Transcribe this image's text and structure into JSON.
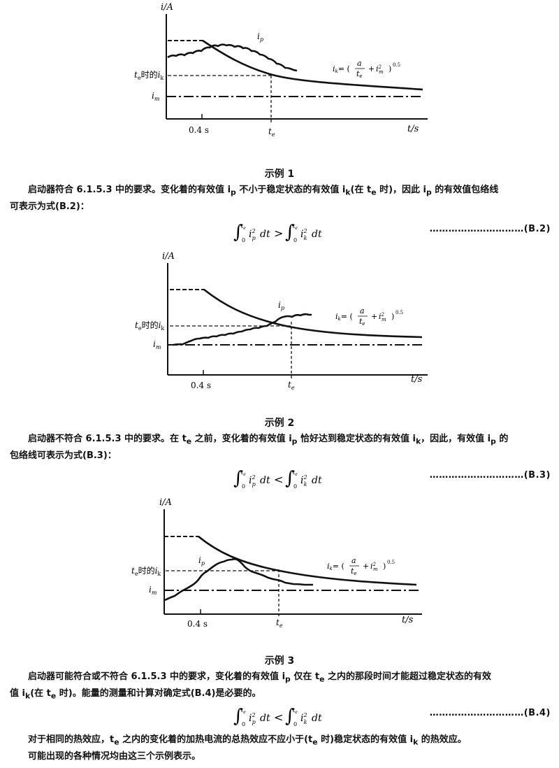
{
  "figures": [
    {
      "axis_y": "i/A",
      "axis_x": "t/s",
      "tick_x1": "0.4  s",
      "tick_x2": "t",
      "tick_x2_sub": "e",
      "label_ik": "t",
      "label_ik_rest": "时的",
      "label_im": "i",
      "label_ip": "i",
      "formula": "i = ( a / t + i² ) ^0.5",
      "caption": "示例 1"
    },
    {
      "axis_y": "i/A",
      "axis_x": "t/s",
      "tick_x1": "0.4  s",
      "tick_x2": "t",
      "tick_x2_sub": "e",
      "label_ik": "t",
      "label_ik_rest": "时的",
      "label_im": "i",
      "label_ip": "i",
      "formula": "i = ( a / t + i² ) ^0.5",
      "caption": "示例 2"
    },
    {
      "axis_y": "i/A",
      "axis_x": "t/s",
      "tick_x1": "0.4  s",
      "tick_x2": "t",
      "tick_x2_sub": "e",
      "label_ik": "t",
      "label_ik_rest": "时的",
      "label_im": "i",
      "label_ip": "i",
      "formula": "i = ( a / t + i² ) ^0.5",
      "caption": "示例 3"
    }
  ],
  "text": {
    "p1_line1": "启动器符合 6.1.5.3 中的要求。变化着的有效值 i",
    "p1_line1_sub": "p",
    "p1_line1_b": " 不小于稳定状态的有效值 i",
    "p1_line1_b_sub": "k",
    "p1_line1_c": "(在 t",
    "p1_line1_c_sub": "e",
    "p1_line1_d": " 时)，因此 i",
    "p1_line1_d_sub": "p",
    "p1_line1_e": " 的有效值包络线",
    "p1_line2": "可表示为式(B.2)：",
    "eq2_label": "…………………………(B.2)",
    "p2_line1": "启动器不符合 6.1.5.3 中的要求。在 t",
    "p2_line1_sub": "e",
    "p2_line1_b": " 之前，变化着的有效值 i",
    "p2_line1_b_sub": "p",
    "p2_line1_c": " 恰好达到稳定状态的有效值 i",
    "p2_line1_c_sub": "k",
    "p2_line1_d": "，因此，有效值 i",
    "p2_line1_d_sub": "p",
    "p2_line1_e": " 的",
    "p2_line2": "包络线可表示为式(B.3)：",
    "eq3_label": "…………………………(B.3)",
    "p3_line1": "启动器可能符合或不符合 6.1.5.3 中的要求，变化着的有效值 i",
    "p3_line1_sub": "p",
    "p3_line1_b": " 仅在 t",
    "p3_line1_b_sub": "e",
    "p3_line1_c": " 之内的那段时间才能超过稳定状态的有效",
    "p3_line2": "值 i",
    "p3_line2_sub": "k",
    "p3_line2_b": "(在 t",
    "p3_line2_b_sub": "e",
    "p3_line2_c": " 时)。能量的测量和计算对确定式(B.4)是必要的。",
    "eq4_label": "…………………………(B.4)",
    "p4_line1": "对于相同的热效应，t",
    "p4_line1_sub": "e",
    "p4_line1_b": " 之内的变化着的加热电流的总热效应不应小于(t",
    "p4_line1_b_sub": "e",
    "p4_line1_c": " 时)稳定状态的有效值 i",
    "p4_line1_c_sub": "k",
    "p4_line1_d": " 的热效应。",
    "p5_line1": "可能出现的各种情况均由这三个示例表示。",
    "eq_gt": ">",
    "eq_lt": "<",
    "eq_dt": "dt",
    "eq_upper": "t",
    "eq_upper_sub": "e",
    "eq_lower": "0"
  }
}
